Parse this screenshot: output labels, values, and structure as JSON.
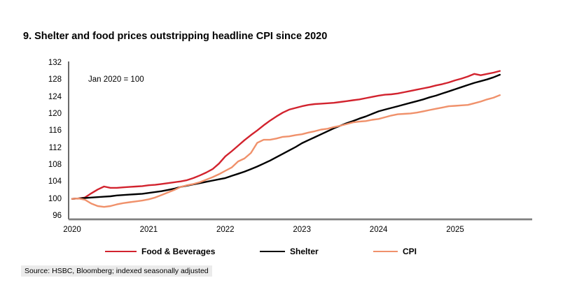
{
  "page": {
    "title": "9. Shelter and food prices outstripping headline CPI since 2020",
    "source": "Source: HSBC, Bloomberg; indexed seasonally adjusted"
  },
  "colors": {
    "food_beverages": "#d2232e",
    "shelter": "#000000",
    "cpi": "#f0916b",
    "x_axis": "#7f7f7f",
    "y_axis": "#1a1a1a",
    "source_highlight": "#ebebeb"
  },
  "chart_data": {
    "type": "line",
    "title": "9. Shelter and food prices outstripping headline CPI since 2020",
    "annotation": "Jan 2020 = 100",
    "x_start": "2020-01",
    "x_end": "2025-08",
    "x_tick_labels": [
      "2020",
      "2021",
      "2022",
      "2023",
      "2024",
      "2025"
    ],
    "y_ticks": [
      96,
      100,
      104,
      108,
      112,
      116,
      120,
      124,
      128,
      132
    ],
    "ylim": [
      96,
      132
    ],
    "grid": false,
    "legend_position": "bottom",
    "series": [
      {
        "name": "Food & Beverages",
        "color": "#d2232e",
        "values": [
          100.0,
          100.1,
          100.3,
          101.3,
          102.2,
          102.9,
          102.6,
          102.6,
          102.7,
          102.8,
          102.9,
          103.0,
          103.2,
          103.3,
          103.5,
          103.7,
          103.9,
          104.1,
          104.4,
          104.9,
          105.5,
          106.2,
          107.0,
          108.3,
          110.0,
          111.2,
          112.5,
          113.8,
          115.0,
          116.1,
          117.3,
          118.4,
          119.4,
          120.3,
          121.0,
          121.4,
          121.8,
          122.1,
          122.3,
          122.4,
          122.5,
          122.6,
          122.8,
          123.0,
          123.2,
          123.4,
          123.7,
          124.0,
          124.3,
          124.5,
          124.6,
          124.8,
          125.1,
          125.4,
          125.7,
          126.0,
          126.3,
          126.7,
          127.0,
          127.4,
          127.9,
          128.3,
          128.8,
          129.4,
          129.1,
          129.4,
          129.7,
          130.1
        ]
      },
      {
        "name": "Shelter",
        "color": "#000000",
        "values": [
          100.0,
          100.1,
          100.2,
          100.3,
          100.4,
          100.5,
          100.6,
          100.8,
          100.9,
          101.0,
          101.1,
          101.2,
          101.4,
          101.6,
          101.8,
          102.1,
          102.4,
          102.8,
          103.1,
          103.4,
          103.7,
          104.0,
          104.3,
          104.6,
          104.9,
          105.4,
          105.9,
          106.4,
          107.0,
          107.6,
          108.3,
          109.0,
          109.8,
          110.6,
          111.4,
          112.2,
          113.1,
          113.8,
          114.5,
          115.2,
          115.9,
          116.6,
          117.2,
          117.8,
          118.3,
          118.9,
          119.4,
          120.0,
          120.6,
          121.0,
          121.4,
          121.8,
          122.2,
          122.6,
          123.0,
          123.4,
          123.9,
          124.3,
          124.8,
          125.3,
          125.8,
          126.3,
          126.8,
          127.3,
          127.7,
          128.1,
          128.6,
          129.2
        ]
      },
      {
        "name": "CPI",
        "color": "#f0916b",
        "values": [
          100.0,
          100.1,
          99.8,
          98.9,
          98.3,
          98.1,
          98.3,
          98.7,
          99.0,
          99.2,
          99.4,
          99.6,
          99.9,
          100.3,
          100.9,
          101.5,
          102.1,
          102.8,
          103.2,
          103.5,
          103.9,
          104.5,
          105.1,
          105.8,
          106.6,
          107.4,
          108.8,
          109.5,
          110.8,
          113.2,
          113.9,
          113.9,
          114.2,
          114.6,
          114.7,
          115.0,
          115.2,
          115.6,
          115.9,
          116.3,
          116.5,
          116.9,
          117.2,
          117.6,
          118.0,
          118.2,
          118.3,
          118.6,
          118.8,
          119.2,
          119.6,
          119.9,
          120.0,
          120.1,
          120.3,
          120.6,
          120.9,
          121.2,
          121.5,
          121.8,
          121.9,
          122.0,
          122.1,
          122.5,
          122.9,
          123.4,
          123.8,
          124.4
        ]
      }
    ]
  }
}
